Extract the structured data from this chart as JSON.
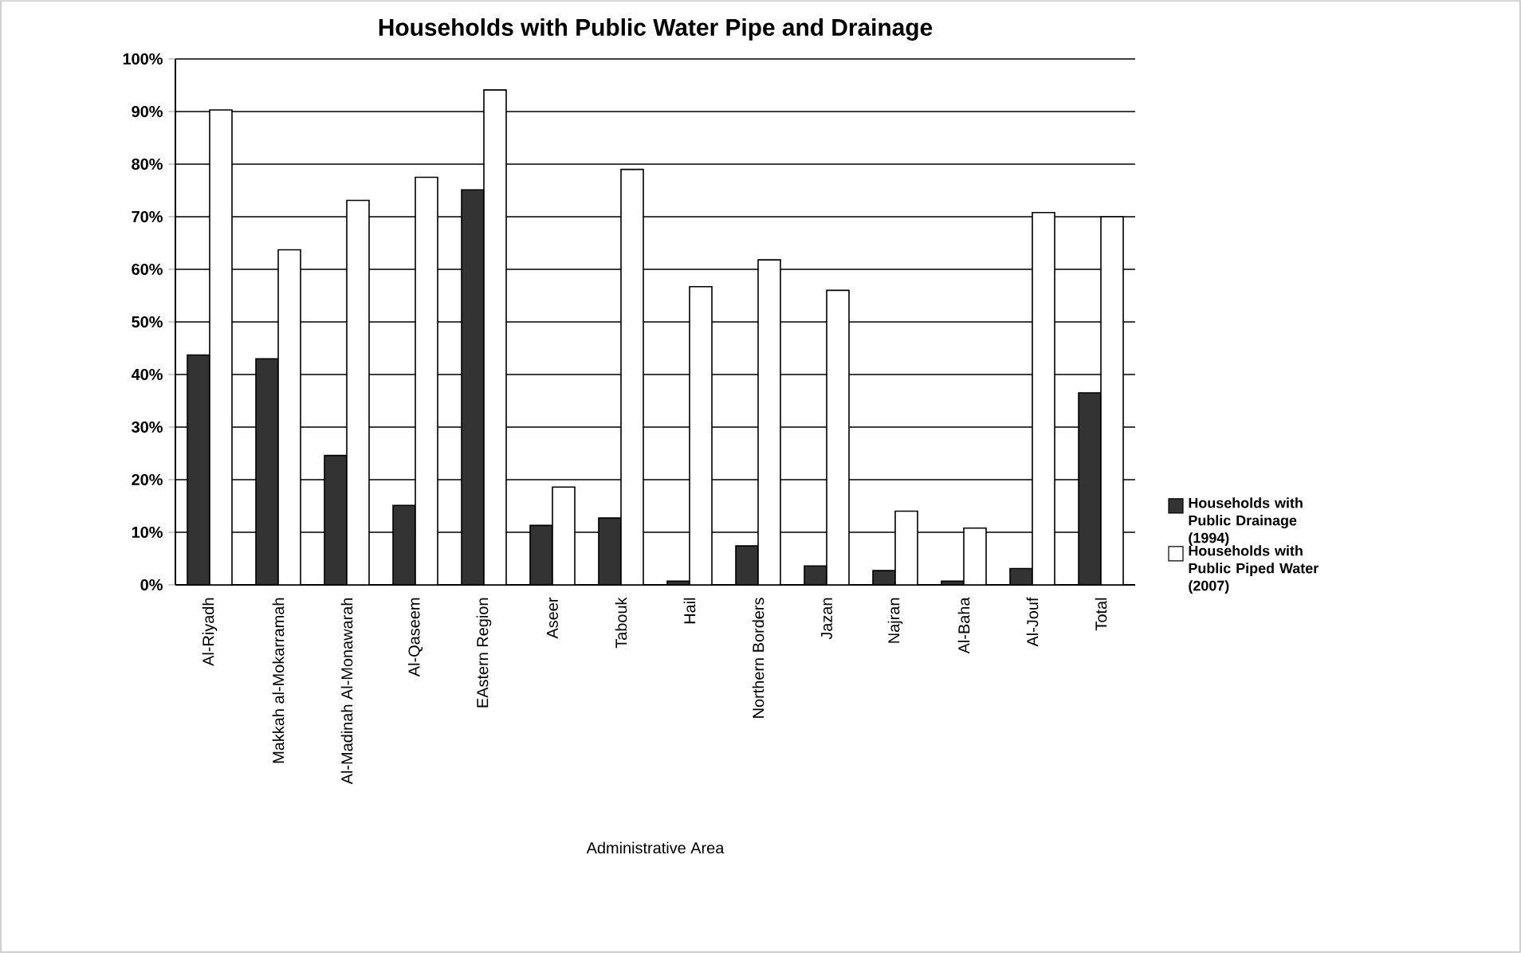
{
  "chart_data": {
    "type": "bar",
    "title": "Households with Public Water Pipe and Drainage",
    "xlabel": "Administrative Area",
    "categories": [
      "Al-Riyadh",
      "Makkah al-Mokarramah",
      "Al-Madinah Al-Monawarah",
      "Al-Qaseem",
      "EAstern Region",
      "Aseer",
      "Tabouk",
      "Hail",
      "Northern Borders",
      "Jazan",
      "Najran",
      "Al-Baha",
      "Al-Jouf",
      "Total"
    ],
    "series": [
      {
        "name": "**Households with Public Drainage (1994)**",
        "color": "#333333",
        "values": [
          43.7,
          43.0,
          24.6,
          15.1,
          75.1,
          11.3,
          12.7,
          0.7,
          7.4,
          3.6,
          2.7,
          0.7,
          3.1,
          36.5
        ]
      },
      {
        "name": "**Households with Public Piped Water (2007)**",
        "color": "#ffffff",
        "values": [
          90.3,
          63.7,
          73.1,
          77.5,
          94.1,
          18.6,
          79.0,
          56.7,
          61.8,
          56.0,
          14.0,
          10.8,
          70.8,
          70.0
        ]
      }
    ],
    "ylim": [
      0,
      100
    ],
    "yticks": [
      {
        "value": 0,
        "label": "0%"
      },
      {
        "value": 10,
        "label": "10%"
      },
      {
        "value": 20,
        "label": "20%"
      },
      {
        "value": 30,
        "label": "30%"
      },
      {
        "value": 40,
        "label": "40%"
      },
      {
        "value": 50,
        "label": "50%"
      },
      {
        "value": 60,
        "label": "60%"
      },
      {
        "value": 70,
        "label": "70%"
      },
      {
        "value": 80,
        "label": "80%"
      },
      {
        "value": 90,
        "label": "90%"
      },
      {
        "value": 100,
        "label": "100%"
      }
    ],
    "grid": "y",
    "legend": "right"
  }
}
